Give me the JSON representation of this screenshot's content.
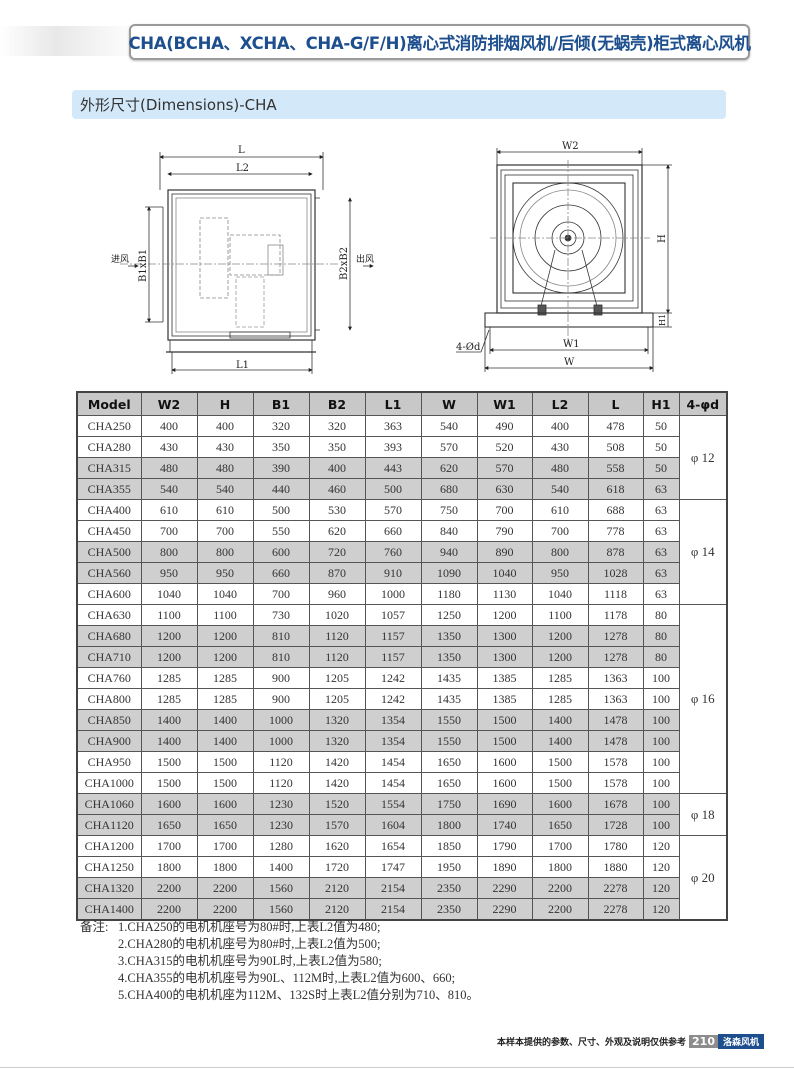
{
  "header": {
    "title": "CHA(BCHA、XCHA、CHA-G/F/H)离心式消防排烟风机/后倾(无蜗壳)柜式离心风机"
  },
  "section": {
    "title": "外形尺寸(Dimensions)-CHA"
  },
  "drawings": {
    "side": {
      "L": "L",
      "L2": "L2",
      "L1": "L1",
      "B1": "B1xB1",
      "B2": "B2xB2",
      "inlet": "进风",
      "outlet": "出风"
    },
    "front": {
      "W2": "W2",
      "H": "H",
      "H1": "H1",
      "W1": "W1",
      "W": "W",
      "holes": "4-Ød"
    }
  },
  "table": {
    "headers": [
      "Model",
      "W2",
      "H",
      "B1",
      "B2",
      "L1",
      "W",
      "W1",
      "L2",
      "L",
      "H1",
      "4-φd"
    ],
    "rows": [
      [
        "CHA250",
        "400",
        "400",
        "320",
        "320",
        "363",
        "540",
        "490",
        "400",
        "478",
        "50"
      ],
      [
        "CHA280",
        "430",
        "430",
        "350",
        "350",
        "393",
        "570",
        "520",
        "430",
        "508",
        "50"
      ],
      [
        "CHA315",
        "480",
        "480",
        "390",
        "400",
        "443",
        "620",
        "570",
        "480",
        "558",
        "50"
      ],
      [
        "CHA355",
        "540",
        "540",
        "440",
        "460",
        "500",
        "680",
        "630",
        "540",
        "618",
        "63"
      ],
      [
        "CHA400",
        "610",
        "610",
        "500",
        "530",
        "570",
        "750",
        "700",
        "610",
        "688",
        "63"
      ],
      [
        "CHA450",
        "700",
        "700",
        "550",
        "620",
        "660",
        "840",
        "790",
        "700",
        "778",
        "63"
      ],
      [
        "CHA500",
        "800",
        "800",
        "600",
        "720",
        "760",
        "940",
        "890",
        "800",
        "878",
        "63"
      ],
      [
        "CHA560",
        "950",
        "950",
        "660",
        "870",
        "910",
        "1090",
        "1040",
        "950",
        "1028",
        "63"
      ],
      [
        "CHA600",
        "1040",
        "1040",
        "700",
        "960",
        "1000",
        "1180",
        "1130",
        "1040",
        "1118",
        "63"
      ],
      [
        "CHA630",
        "1100",
        "1100",
        "730",
        "1020",
        "1057",
        "1250",
        "1200",
        "1100",
        "1178",
        "80"
      ],
      [
        "CHA680",
        "1200",
        "1200",
        "810",
        "1120",
        "1157",
        "1350",
        "1300",
        "1200",
        "1278",
        "80"
      ],
      [
        "CHA710",
        "1200",
        "1200",
        "810",
        "1120",
        "1157",
        "1350",
        "1300",
        "1200",
        "1278",
        "80"
      ],
      [
        "CHA760",
        "1285",
        "1285",
        "900",
        "1205",
        "1242",
        "1435",
        "1385",
        "1285",
        "1363",
        "100"
      ],
      [
        "CHA800",
        "1285",
        "1285",
        "900",
        "1205",
        "1242",
        "1435",
        "1385",
        "1285",
        "1363",
        "100"
      ],
      [
        "CHA850",
        "1400",
        "1400",
        "1000",
        "1320",
        "1354",
        "1550",
        "1500",
        "1400",
        "1478",
        "100"
      ],
      [
        "CHA900",
        "1400",
        "1400",
        "1000",
        "1320",
        "1354",
        "1550",
        "1500",
        "1400",
        "1478",
        "100"
      ],
      [
        "CHA950",
        "1500",
        "1500",
        "1120",
        "1420",
        "1454",
        "1650",
        "1600",
        "1500",
        "1578",
        "100"
      ],
      [
        "CHA1000",
        "1500",
        "1500",
        "1120",
        "1420",
        "1454",
        "1650",
        "1600",
        "1500",
        "1578",
        "100"
      ],
      [
        "CHA1060",
        "1600",
        "1600",
        "1230",
        "1520",
        "1554",
        "1750",
        "1690",
        "1600",
        "1678",
        "100"
      ],
      [
        "CHA1120",
        "1650",
        "1650",
        "1230",
        "1570",
        "1604",
        "1800",
        "1740",
        "1650",
        "1728",
        "100"
      ],
      [
        "CHA1200",
        "1700",
        "1700",
        "1280",
        "1620",
        "1654",
        "1850",
        "1790",
        "1700",
        "1780",
        "120"
      ],
      [
        "CHA1250",
        "1800",
        "1800",
        "1400",
        "1720",
        "1747",
        "1950",
        "1890",
        "1800",
        "1880",
        "120"
      ],
      [
        "CHA1320",
        "2200",
        "2200",
        "1560",
        "2120",
        "2154",
        "2350",
        "2290",
        "2200",
        "2278",
        "120"
      ],
      [
        "CHA1400",
        "2200",
        "2200",
        "1560",
        "2120",
        "2154",
        "2350",
        "2290",
        "2200",
        "2278",
        "120"
      ]
    ],
    "shaded_rows": [
      "CHA315",
      "CHA355",
      "CHA500",
      "CHA560",
      "CHA680",
      "CHA710",
      "CHA850",
      "CHA900",
      "CHA1060",
      "CHA1120",
      "CHA1320",
      "CHA1400"
    ],
    "bolt_groups": [
      {
        "label": "φ 12",
        "rows": 4
      },
      {
        "label": "φ 14",
        "rows": 5
      },
      {
        "label": "φ 16",
        "rows": 9
      },
      {
        "label": "φ 18",
        "rows": 2
      },
      {
        "label": "φ 20",
        "rows": 4
      }
    ]
  },
  "notes": {
    "label": "备注:",
    "items": [
      "1.CHA250的电机机座号为80#时,上表L2值为480;",
      "2.CHA280的电机机座号为80#时,上表L2值为500;",
      "3.CHA315的电机机座号为90L时,上表L2值为580;",
      "4.CHA355的电机机座号为90L、112M时,上表L2值为600、660;",
      "5.CHA400的电机机座为112M、132S时上表L2值分别为710、810。"
    ]
  },
  "footer": {
    "disclaimer": "本样本提供的参数、尺寸、外观及说明仅供参考",
    "page": "210",
    "brand": "洛森风机"
  },
  "colors": {
    "title": "#1d4f8f",
    "section_bg": "#d3e8f8",
    "table_header": "#c8c8c8",
    "row_shade": "#cfcfcf"
  }
}
